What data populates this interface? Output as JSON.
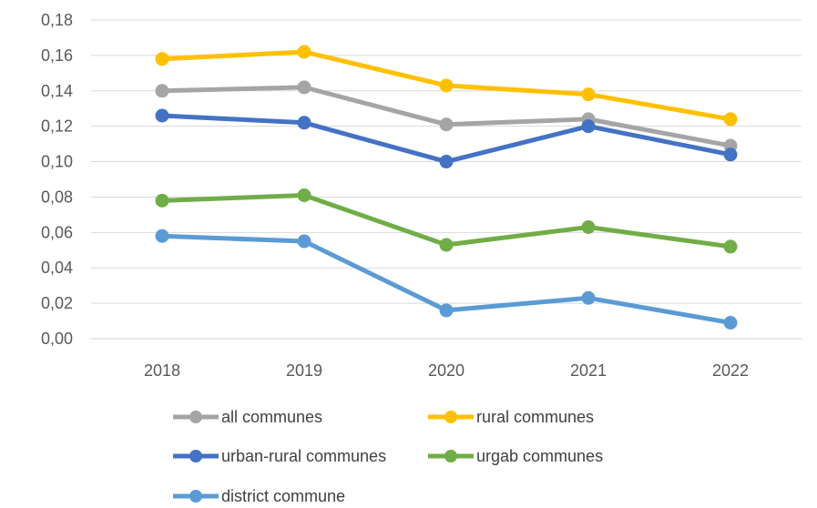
{
  "chart_data": {
    "type": "line",
    "title": "",
    "xlabel": "",
    "ylabel": "",
    "categories": [
      "2018",
      "2019",
      "2020",
      "2021",
      "2022"
    ],
    "ylim": [
      0,
      0.18
    ],
    "yticks": [
      0,
      0.02,
      0.04,
      0.06,
      0.08,
      0.1,
      0.12,
      0.14,
      0.16,
      0.18
    ],
    "ytick_labels": [
      "0,00",
      "0,02",
      "0,04",
      "0,06",
      "0,08",
      "0,10",
      "0,12",
      "0,14",
      "0,16",
      "0,18"
    ],
    "grid": "horizontal",
    "legend_position": "bottom",
    "series": [
      {
        "name": "all communes",
        "color": "#A5A5A5",
        "values": [
          0.14,
          0.142,
          0.121,
          0.124,
          0.109
        ]
      },
      {
        "name": "rural communes",
        "color": "#FFC000",
        "values": [
          0.158,
          0.162,
          0.143,
          0.138,
          0.124
        ]
      },
      {
        "name": "urban-rural communes",
        "color": "#4472C4",
        "values": [
          0.126,
          0.122,
          0.1,
          0.12,
          0.104
        ]
      },
      {
        "name": "urgab communes",
        "color": "#70AD47",
        "values": [
          0.078,
          0.081,
          0.053,
          0.063,
          0.052
        ]
      },
      {
        "name": "district commune",
        "color": "#5B9BD5",
        "values": [
          0.058,
          0.055,
          0.016,
          0.023,
          0.009
        ]
      }
    ]
  }
}
